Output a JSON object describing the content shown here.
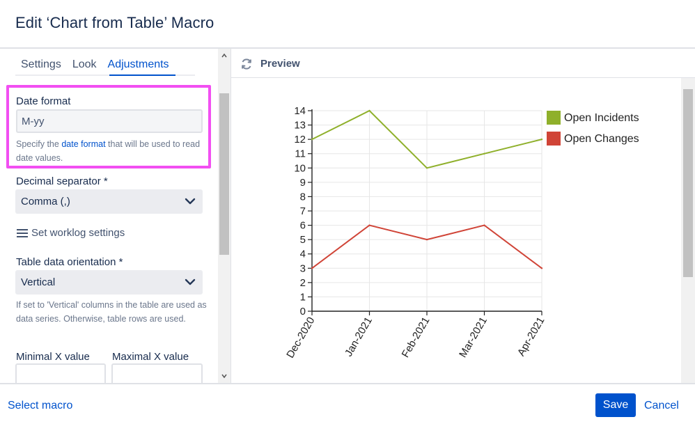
{
  "dialog": {
    "title": "Edit ‘Chart from Table’ Macro"
  },
  "tabs": [
    {
      "label": "Settings",
      "active": false
    },
    {
      "label": "Look",
      "active": false
    },
    {
      "label": "Adjustments",
      "active": true
    }
  ],
  "date_format": {
    "label": "Date format",
    "value": "M-yy",
    "help_prefix": "Specify the ",
    "help_link": "date format",
    "help_suffix": " that will be used to read date values."
  },
  "decimal_separator": {
    "label": "Decimal separator *",
    "value": "Comma (,)"
  },
  "worklog": {
    "label": "Set worklog settings",
    "icon": "hamburger-menu-icon"
  },
  "orientation": {
    "label": "Table data orientation *",
    "value": "Vertical",
    "help": "If set to 'Vertical' columns in the table are used as data series. Otherwise, table rows are used."
  },
  "x_range": {
    "min_label": "Minimal X value",
    "max_label": "Maximal X value",
    "min_value": "",
    "max_value": ""
  },
  "preview": {
    "label": "Preview",
    "icon": "refresh-icon"
  },
  "chart_data": {
    "type": "line",
    "categories": [
      "Dec-2020",
      "Jan-2021",
      "Feb-2021",
      "Mar-2021",
      "Apr-2021"
    ],
    "series": [
      {
        "name": "Open Incidents",
        "values": [
          12,
          14,
          10,
          11,
          12
        ],
        "color": "#8fb02b"
      },
      {
        "name": "Open Changes",
        "values": [
          3,
          6,
          5,
          6,
          3
        ],
        "color": "#d04437"
      }
    ],
    "ylim": [
      0,
      14
    ],
    "yticks": [
      "0",
      "1",
      "2",
      "3",
      "4",
      "5",
      "6",
      "7",
      "8",
      "9",
      "10",
      "11",
      "12",
      "13",
      "14"
    ],
    "grid": true,
    "legend_position": "top-right",
    "title": "",
    "xlabel": "",
    "ylabel": ""
  },
  "footer": {
    "select_macro": "Select macro",
    "save": "Save",
    "cancel": "Cancel"
  },
  "colors": {
    "accent": "#0052cc",
    "highlight": "#f24ff2"
  }
}
